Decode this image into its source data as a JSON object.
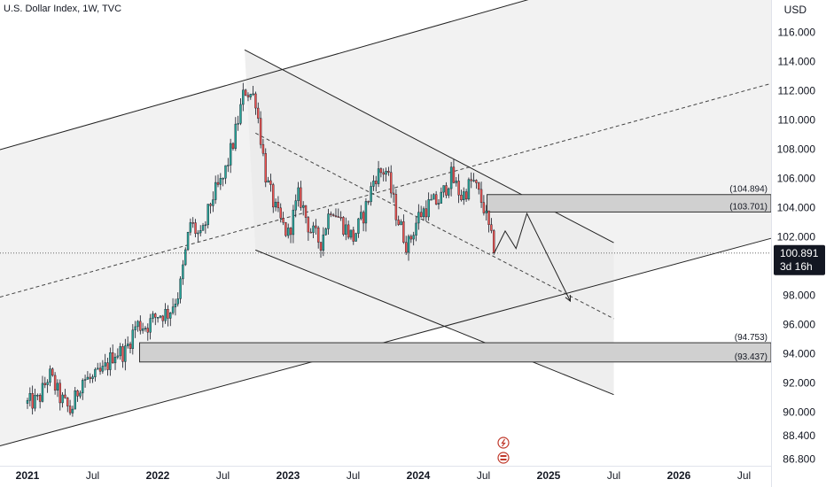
{
  "header": {
    "title": "U.S. Dollar Index, 1W, TVC",
    "currency": "USD"
  },
  "colors": {
    "up": "#26a69a",
    "down": "#ef5350",
    "wick": "#131722",
    "channel_fill": "#ebebeb",
    "zone_fill": "#d0d0d0"
  },
  "price_badge": {
    "value": "100.891",
    "countdown": "3d 16h"
  },
  "zones": [
    {
      "top": 104.894,
      "bottom": 103.701,
      "top_label": "(104.894)",
      "bottom_label": "(103.701)"
    },
    {
      "top": 94.753,
      "bottom": 93.437,
      "top_label": "(94.753)",
      "bottom_label": "(93.437)"
    }
  ],
  "chart_data": {
    "type": "candlestick",
    "title": "U.S. Dollar Index, 1W, TVC",
    "ylabel": "USD",
    "ylim": [
      86.0,
      118.0
    ],
    "y_ticks": [
      "86.800",
      "88.400",
      "90.000",
      "92.000",
      "94.000",
      "96.000",
      "98.000",
      "102.000",
      "104.000",
      "106.000",
      "108.000",
      "110.000",
      "112.000",
      "114.000",
      "116.000"
    ],
    "x_ticks": [
      "2021",
      "Jul",
      "2022",
      "Jul",
      "2023",
      "Jul",
      "2024",
      "Jul",
      "2025",
      "Jul",
      "2026",
      "Jul"
    ],
    "x_tick_dates": [
      "2021-01",
      "2021-07",
      "2022-01",
      "2022-07",
      "2023-01",
      "2023-07",
      "2024-01",
      "2024-07",
      "2025-01",
      "2025-07",
      "2026-01",
      "2026-07"
    ],
    "last_price": 100.891,
    "path": [
      [
        "2021-01",
        90.6
      ],
      [
        "2021-02",
        90.8
      ],
      [
        "2021-03",
        92.6
      ],
      [
        "2021-04",
        91.0
      ],
      [
        "2021-05",
        90.0
      ],
      [
        "2021-06",
        92.3
      ],
      [
        "2021-07",
        92.2
      ],
      [
        "2021-08",
        92.8
      ],
      [
        "2021-09",
        94.1
      ],
      [
        "2021-10",
        94.1
      ],
      [
        "2021-11",
        96.0
      ],
      [
        "2021-12",
        95.9
      ],
      [
        "2022-01",
        96.7
      ],
      [
        "2022-02",
        96.8
      ],
      [
        "2022-03",
        98.3
      ],
      [
        "2022-04",
        103.0
      ],
      [
        "2022-05",
        101.8
      ],
      [
        "2022-06",
        104.7
      ],
      [
        "2022-07",
        105.9
      ],
      [
        "2022-08",
        108.6
      ],
      [
        "2022-09",
        112.1
      ],
      [
        "2022-10",
        111.5
      ],
      [
        "2022-11",
        105.9
      ],
      [
        "2022-12",
        103.5
      ],
      [
        "2023-01",
        102.1
      ],
      [
        "2023-02",
        104.9
      ],
      [
        "2023-03",
        102.5
      ],
      [
        "2023-04",
        101.6
      ],
      [
        "2023-05",
        104.2
      ],
      [
        "2023-06",
        102.9
      ],
      [
        "2023-07",
        101.9
      ],
      [
        "2023-08",
        103.6
      ],
      [
        "2023-09",
        106.2
      ],
      [
        "2023-10",
        106.6
      ],
      [
        "2023-11",
        103.5
      ],
      [
        "2023-12",
        101.3
      ],
      [
        "2024-01",
        103.4
      ],
      [
        "2024-02",
        104.2
      ],
      [
        "2024-03",
        104.5
      ],
      [
        "2024-04",
        106.2
      ],
      [
        "2024-05",
        104.7
      ],
      [
        "2024-06",
        105.9
      ],
      [
        "2024-07",
        104.1
      ],
      [
        "2024-08",
        100.9
      ]
    ],
    "annotations": {
      "ascending_channel": {
        "upper": [
          [
            "2021-01",
            108.5
          ],
          [
            "2025-07",
            119.9
          ]
        ],
        "lower": [
          [
            "2021-01",
            88.2
          ],
          [
            "2026-10",
            102.0
          ]
        ],
        "mid": [
          [
            "2021-01",
            98.4
          ],
          [
            "2026-10",
            112.6
          ]
        ]
      },
      "descending_channel": {
        "upper": [
          [
            "2022-09",
            114.8
          ],
          [
            "2025-07",
            101.6
          ]
        ],
        "lower": [
          [
            "2022-10",
            101.1
          ],
          [
            "2025-07",
            91.2
          ]
        ],
        "mid": [
          [
            "2022-10",
            109.1
          ],
          [
            "2025-07",
            96.4
          ]
        ]
      },
      "forecast_path": [
        [
          "2024-08",
          100.9
        ],
        [
          "2024-09",
          102.4
        ],
        [
          "2024-10",
          101.2
        ],
        [
          "2024-11",
          103.6
        ],
        [
          "2025-03",
          97.6
        ]
      ]
    }
  }
}
